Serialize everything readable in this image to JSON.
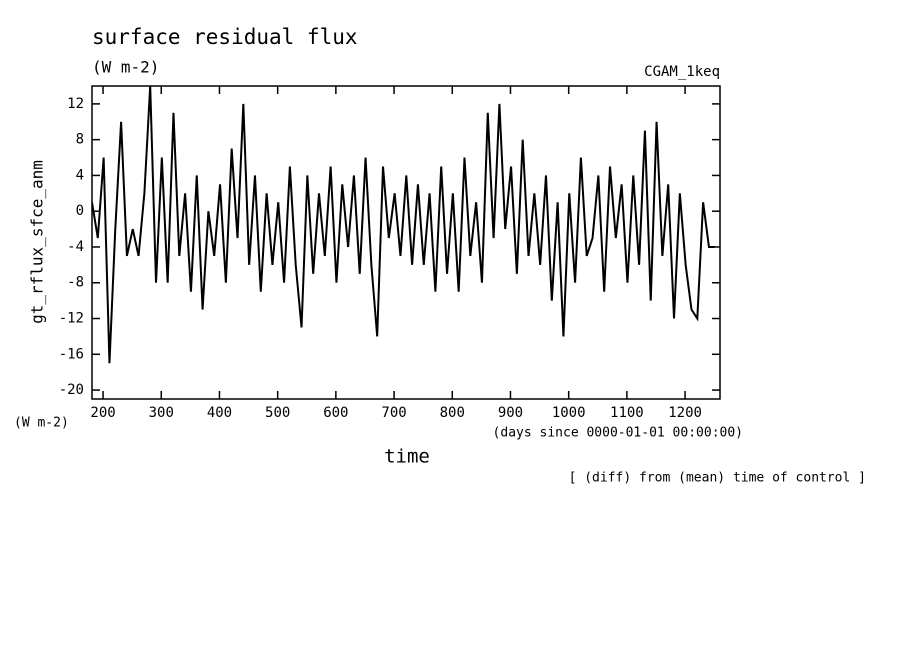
{
  "chart_data": {
    "type": "line",
    "title": "surface residual flux",
    "subtitle": "(W m-2)",
    "annotation": "CGAM_1keq",
    "ylabel": "gt_rflux_sfce_anm",
    "yunits": "(W m-2)",
    "xunits": "(days since 0000-01-01 00:00:00)",
    "xlabel": "time",
    "note": "[ (diff) from (mean) time of control ]",
    "color": "#000000",
    "x": [
      181,
      191,
      201,
      211,
      221,
      231,
      241,
      251,
      261,
      271,
      281,
      291,
      301,
      311,
      321,
      331,
      341,
      351,
      361,
      371,
      381,
      391,
      401,
      411,
      421,
      431,
      441,
      451,
      461,
      471,
      481,
      491,
      501,
      511,
      521,
      531,
      541,
      551,
      561,
      571,
      581,
      591,
      601,
      611,
      621,
      631,
      641,
      651,
      661,
      671,
      681,
      691,
      701,
      711,
      721,
      731,
      741,
      751,
      761,
      771,
      781,
      791,
      801,
      811,
      821,
      831,
      841,
      851,
      861,
      871,
      881,
      891,
      901,
      911,
      921,
      931,
      941,
      951,
      961,
      971,
      981,
      991,
      1001,
      1011,
      1021,
      1031,
      1041,
      1051,
      1061,
      1071,
      1081,
      1091,
      1101,
      1111,
      1121,
      1131,
      1141,
      1151,
      1161,
      1171,
      1181,
      1191,
      1201,
      1211,
      1221,
      1231,
      1241,
      1251
    ],
    "values": [
      1,
      -3,
      6,
      -17,
      -2,
      10,
      -5,
      -2,
      -5,
      2,
      14,
      -8,
      6,
      -8,
      11,
      -5,
      2,
      -9,
      4,
      -11,
      0,
      -5,
      3,
      -8,
      7,
      -3,
      12,
      -6,
      4,
      -9,
      2,
      -6,
      1,
      -8,
      5,
      -6,
      -13,
      4,
      -7,
      2,
      -5,
      5,
      -8,
      3,
      -4,
      4,
      -7,
      6,
      -6,
      -14,
      5,
      -3,
      2,
      -5,
      4,
      -6,
      3,
      -6,
      2,
      -9,
      5,
      -7,
      2,
      -9,
      6,
      -5,
      1,
      -8,
      11,
      -3,
      12,
      -2,
      5,
      -7,
      8,
      -5,
      2,
      -6,
      4,
      -10,
      1,
      -14,
      2,
      -8,
      6,
      -5,
      -3,
      4,
      -9,
      5,
      -3,
      3,
      -8,
      4,
      -6,
      9,
      -10,
      10,
      -5,
      3,
      -12,
      2,
      -6,
      -11,
      -12,
      1,
      -4,
      -4
    ],
    "xlim": [
      181,
      1260
    ],
    "ylim": [
      -21,
      14
    ],
    "xticks": [
      200,
      300,
      400,
      500,
      600,
      700,
      800,
      900,
      1000,
      1100,
      1200
    ],
    "yticks": [
      -20,
      -16,
      -12,
      -8,
      -4,
      0,
      4,
      8,
      12
    ]
  }
}
